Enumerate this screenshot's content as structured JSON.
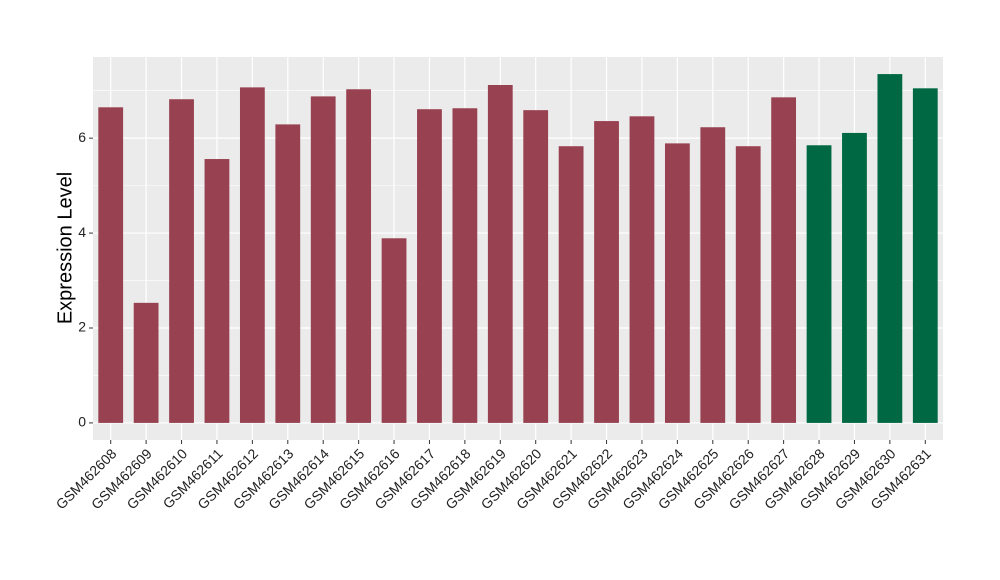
{
  "chart_data": {
    "type": "bar",
    "y_label": "Expression Level",
    "categories": [
      "GSM462608",
      "GSM462609",
      "GSM462610",
      "GSM462611",
      "GSM462612",
      "GSM462613",
      "GSM462614",
      "GSM462615",
      "GSM462616",
      "GSM462617",
      "GSM462618",
      "GSM462619",
      "GSM462620",
      "GSM462621",
      "GSM462622",
      "GSM462623",
      "GSM462624",
      "GSM462625",
      "GSM462626",
      "GSM462627",
      "GSM462628",
      "GSM462629",
      "GSM462630",
      "GSM462631"
    ],
    "values": [
      6.65,
      2.53,
      6.82,
      5.56,
      7.07,
      6.29,
      6.88,
      7.03,
      3.89,
      6.61,
      6.63,
      7.12,
      6.59,
      5.83,
      6.36,
      6.46,
      5.89,
      6.23,
      5.83,
      6.86,
      5.85,
      6.11,
      7.35,
      7.05
    ],
    "colors": [
      "#984150",
      "#984150",
      "#984150",
      "#984150",
      "#984150",
      "#984150",
      "#984150",
      "#984150",
      "#984150",
      "#984150",
      "#984150",
      "#984150",
      "#984150",
      "#984150",
      "#984150",
      "#984150",
      "#984150",
      "#984150",
      "#984150",
      "#984150",
      "#006843",
      "#006843",
      "#006843",
      "#006843"
    ],
    "ylim": [
      -0.36,
      7.71
    ],
    "yticks": [
      0,
      2,
      4,
      6
    ],
    "minor_yticks": [
      1,
      3,
      5,
      7
    ],
    "grid": true
  }
}
